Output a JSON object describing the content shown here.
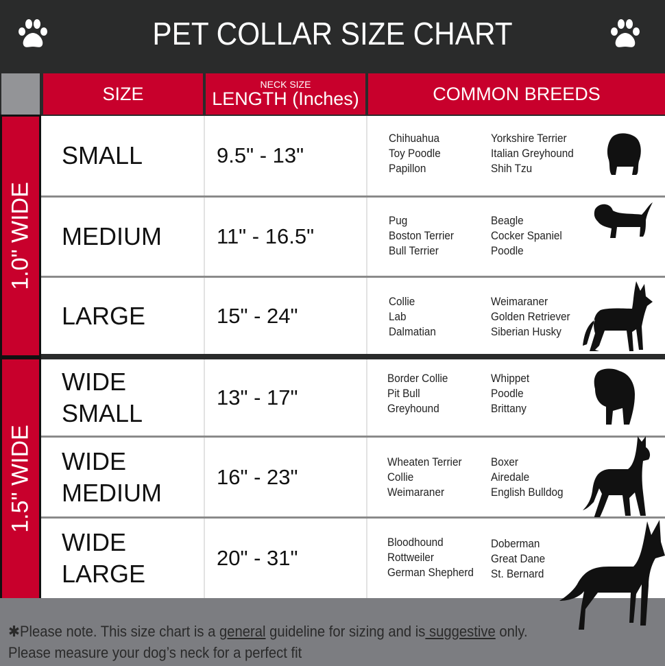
{
  "title": "PET COLLAR SIZE CHART",
  "headers": {
    "size": "SIZE",
    "neck_small": "NECK SIZE",
    "length": "LENGTH (Inches)",
    "breeds": "COMMON BREEDS"
  },
  "groups": [
    {
      "label": "1.0\" WIDE"
    },
    {
      "label": "1.5\" WIDE"
    }
  ],
  "rows": [
    {
      "size": [
        "SMALL"
      ],
      "length": "9.5\" - 13\"",
      "breeds_a": [
        "Chihuahua",
        "Toy Poodle",
        "Papillon"
      ],
      "breeds_b": [
        "Yorkshire Terrier",
        "Italian Greyhound",
        "Shih Tzu"
      ]
    },
    {
      "size": [
        "MEDIUM"
      ],
      "length": "11\" - 16.5\"",
      "breeds_a": [
        "Pug",
        "Boston Terrier",
        "Bull Terrier"
      ],
      "breeds_b": [
        "Beagle",
        "Cocker Spaniel",
        "Poodle"
      ]
    },
    {
      "size": [
        "LARGE"
      ],
      "length": "15\" - 24\"",
      "breeds_a": [
        "Collie",
        "Lab",
        "Dalmatian"
      ],
      "breeds_b": [
        "Weimaraner",
        "Golden Retriever",
        "Siberian Husky"
      ]
    },
    {
      "size": [
        "WIDE",
        "SMALL"
      ],
      "length": "13\" - 17\"",
      "breeds_a": [
        "Border Collie",
        "Pit Bull",
        "Greyhound"
      ],
      "breeds_b": [
        "Whippet",
        "Poodle",
        "Brittany"
      ]
    },
    {
      "size": [
        "WIDE",
        "MEDIUM"
      ],
      "length": "16\" - 23\"",
      "breeds_a": [
        "Wheaten Terrier",
        "Collie",
        "Weimaraner"
      ],
      "breeds_b": [
        "Boxer",
        "Airedale",
        "English Bulldog"
      ]
    },
    {
      "size": [
        "WIDE",
        "LARGE"
      ],
      "length": "20\" - 31\"",
      "breeds_a": [
        "Bloodhound",
        "Rottweiler",
        "German Shepherd"
      ],
      "breeds_b": [
        "Doberman",
        "Great Dane",
        "St. Bernard"
      ]
    }
  ],
  "footer": {
    "p1": "✱Please note. This size chart is a ",
    "u1": "general",
    "p2": " guideline for sizing and is",
    "u2": " suggestive",
    "p3": " only.",
    "line2": "Please measure your dog’s neck for a perfect fit"
  },
  "colors": {
    "red": "#c8002c",
    "dark": "#2a2b2b",
    "gray": "#7c7d81"
  },
  "icons": [
    "paw-icon",
    "dog-silhouette-icon"
  ]
}
